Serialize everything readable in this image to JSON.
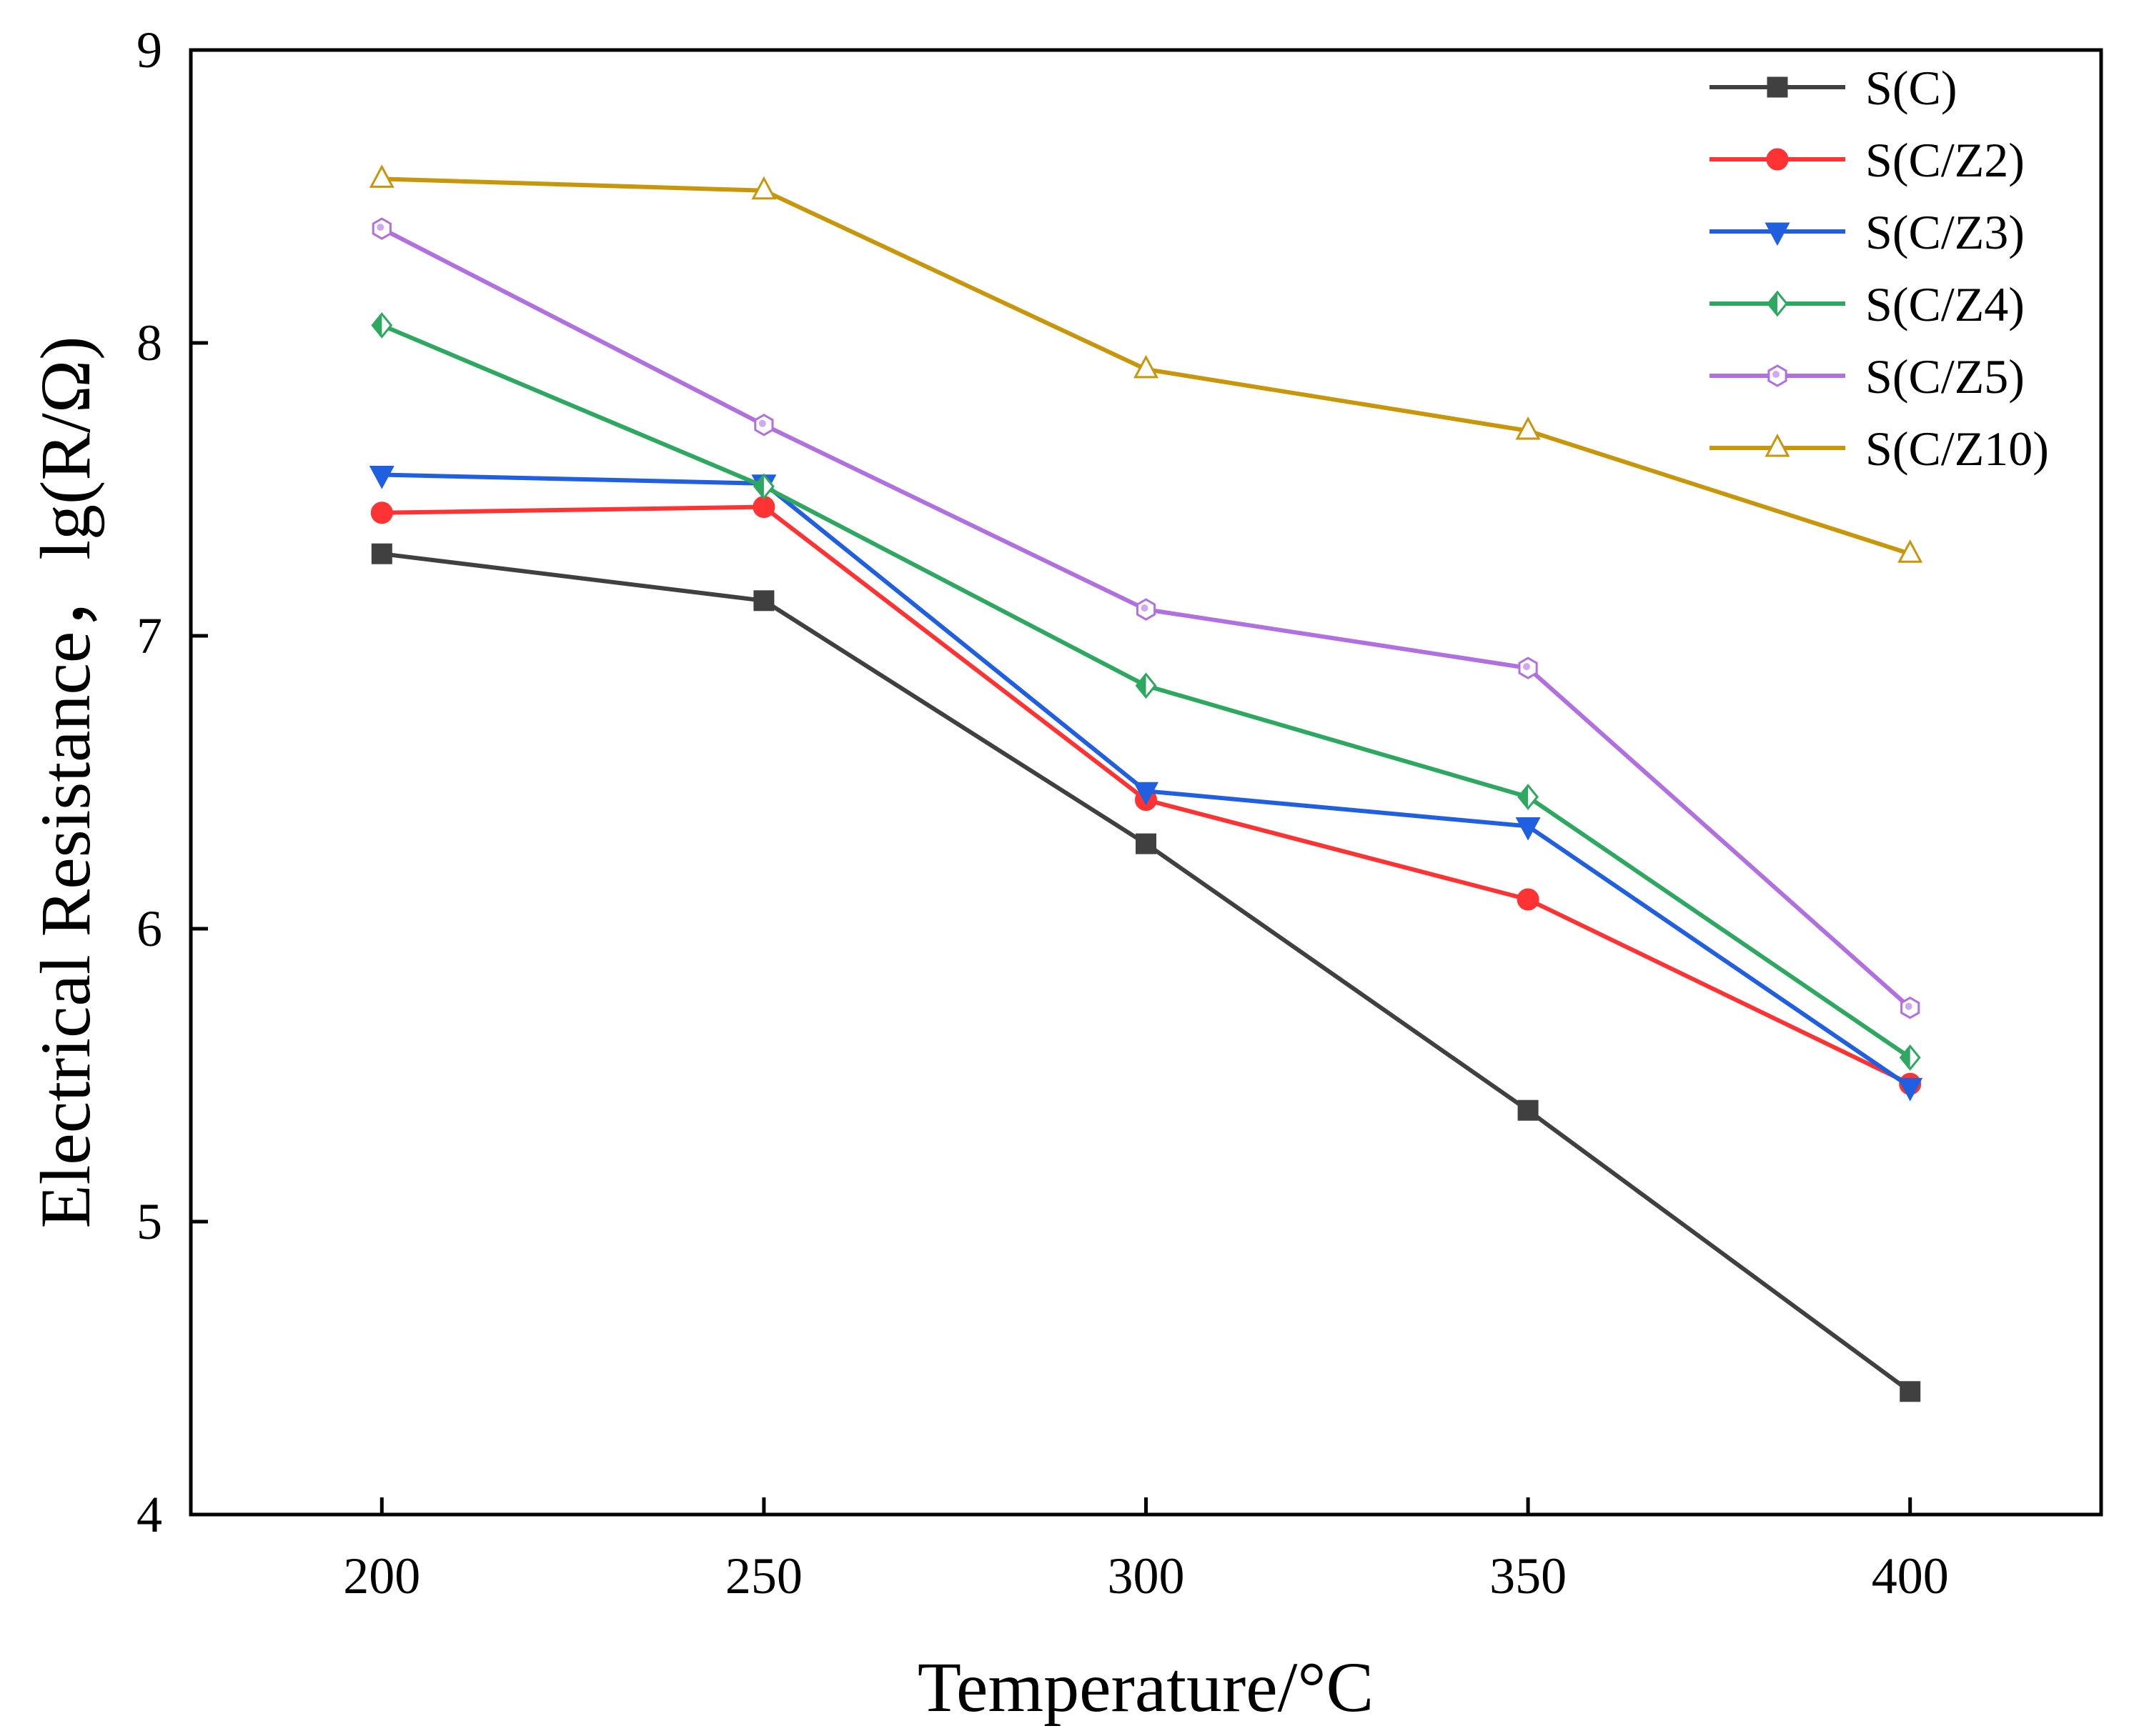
{
  "chart_data": {
    "type": "line",
    "title": "",
    "xlabel": "Temperature/°C",
    "ylabel": "Electrical Resistance，lg(R/Ω)",
    "x": [
      200,
      250,
      300,
      350,
      400
    ],
    "xlim": [
      175,
      425
    ],
    "ylim": [
      4,
      9
    ],
    "xticks": [
      "200",
      "250",
      "300",
      "350",
      "400"
    ],
    "yticks": [
      "4",
      "5",
      "6",
      "7",
      "8",
      "9"
    ],
    "grid": false,
    "legend_position": "top-right",
    "series": [
      {
        "name": "S(C)",
        "color": "#404040",
        "marker": "square",
        "values": [
          7.28,
          7.12,
          6.29,
          5.38,
          4.42
        ]
      },
      {
        "name": "S(C/Z2)",
        "color": "#ff3333",
        "marker": "circle",
        "values": [
          7.42,
          7.44,
          6.44,
          6.1,
          5.47
        ]
      },
      {
        "name": "S(C/Z3)",
        "color": "#1f5fe0",
        "marker": "triangle-down",
        "values": [
          7.55,
          7.52,
          6.47,
          6.35,
          5.46
        ]
      },
      {
        "name": "S(C/Z4)",
        "color": "#2ea860",
        "marker": "diamond",
        "values": [
          8.06,
          7.51,
          6.83,
          6.45,
          5.56
        ]
      },
      {
        "name": "S(C/Z5)",
        "color": "#b070e0",
        "marker": "hexagon",
        "values": [
          8.39,
          7.72,
          7.09,
          6.89,
          5.73
        ]
      },
      {
        "name": "S(C/Z10)",
        "color": "#c8960a",
        "marker": "triangle-up",
        "values": [
          8.56,
          8.52,
          7.91,
          7.7,
          7.28
        ]
      }
    ]
  }
}
